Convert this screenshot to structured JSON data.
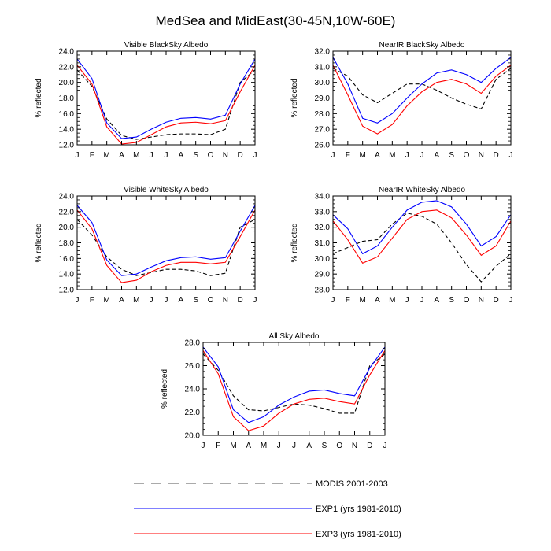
{
  "title": "MedSea and MidEast(30-45N,10W-60E)",
  "colors": {
    "modis": "#000000",
    "exp1": "#0000ff",
    "exp3": "#ff0000"
  },
  "legend": [
    {
      "key": "modis",
      "label": "MODIS 2001-2003",
      "style": "dashed"
    },
    {
      "key": "exp1",
      "label": "EXP1 (yrs 1981-2010)",
      "style": "solid"
    },
    {
      "key": "exp3",
      "label": "EXP3 (yrs 1981-2010)",
      "style": "solid"
    }
  ],
  "chart_data": [
    {
      "type": "line",
      "title": "Visible BlackSky Albedo",
      "ylabel": "% reflected",
      "categories": [
        "J",
        "F",
        "M",
        "A",
        "M",
        "J",
        "J",
        "A",
        "S",
        "O",
        "N",
        "D",
        "J"
      ],
      "ylim": [
        12.0,
        24.0
      ],
      "yticks": [
        "12.0",
        "14.0",
        "16.0",
        "18.0",
        "20.0",
        "22.0",
        "24.0"
      ],
      "series": [
        {
          "key": "modis",
          "name": "MODIS 2001-2003",
          "values": [
            21.6,
            19.5,
            15.3,
            13.2,
            12.7,
            13.0,
            13.3,
            13.4,
            13.4,
            13.3,
            14.0,
            20.0,
            21.6
          ]
        },
        {
          "key": "exp1",
          "name": "EXP1 (yrs 1981-2010)",
          "values": [
            23.0,
            20.5,
            14.8,
            12.8,
            13.0,
            14.0,
            14.9,
            15.4,
            15.5,
            15.3,
            15.8,
            19.8,
            23.0
          ]
        },
        {
          "key": "exp3",
          "name": "EXP3 (yrs 1981-2010)",
          "values": [
            22.2,
            19.8,
            14.3,
            12.1,
            12.3,
            13.3,
            14.3,
            14.8,
            14.9,
            14.7,
            15.1,
            18.8,
            22.2
          ]
        }
      ]
    },
    {
      "type": "line",
      "title": "NearIR BlackSky Albedo",
      "ylabel": "% reflected",
      "categories": [
        "J",
        "F",
        "M",
        "A",
        "M",
        "J",
        "J",
        "A",
        "S",
        "O",
        "N",
        "D",
        "J"
      ],
      "ylim": [
        26.0,
        32.0
      ],
      "yticks": [
        "26.0",
        "27.0",
        "28.0",
        "29.0",
        "30.0",
        "31.0",
        "32.0"
      ],
      "series": [
        {
          "key": "modis",
          "name": "MODIS 2001-2003",
          "values": [
            30.9,
            30.4,
            29.2,
            28.7,
            29.3,
            29.9,
            29.9,
            29.5,
            29.0,
            28.6,
            28.3,
            30.2,
            30.9
          ]
        },
        {
          "key": "exp1",
          "name": "EXP1 (yrs 1981-2010)",
          "values": [
            31.6,
            29.9,
            27.7,
            27.4,
            28.0,
            29.0,
            29.9,
            30.6,
            30.8,
            30.5,
            30.0,
            30.9,
            31.6
          ]
        },
        {
          "key": "exp3",
          "name": "EXP3 (yrs 1981-2010)",
          "values": [
            31.1,
            29.2,
            27.2,
            26.7,
            27.3,
            28.5,
            29.4,
            30.0,
            30.2,
            29.9,
            29.3,
            30.4,
            31.1
          ]
        }
      ]
    },
    {
      "type": "line",
      "title": "Visible WhiteSky Albedo",
      "ylabel": "% reflected",
      "categories": [
        "J",
        "F",
        "M",
        "A",
        "M",
        "J",
        "J",
        "A",
        "S",
        "O",
        "N",
        "D",
        "J"
      ],
      "ylim": [
        12.0,
        24.0
      ],
      "yticks": [
        "12.0",
        "14.0",
        "16.0",
        "18.0",
        "20.0",
        "22.0",
        "24.0"
      ],
      "series": [
        {
          "key": "modis",
          "name": "MODIS 2001-2003",
          "values": [
            21.0,
            19.0,
            16.2,
            14.6,
            13.8,
            14.2,
            14.6,
            14.6,
            14.4,
            13.8,
            14.1,
            20.0,
            21.0
          ]
        },
        {
          "key": "exp1",
          "name": "EXP1 (yrs 1981-2010)",
          "values": [
            22.8,
            20.6,
            15.8,
            13.8,
            14.0,
            14.9,
            15.7,
            16.1,
            16.2,
            15.9,
            16.1,
            19.5,
            22.8
          ]
        },
        {
          "key": "exp3",
          "name": "EXP3 (yrs 1981-2010)",
          "values": [
            22.2,
            19.8,
            15.1,
            12.9,
            13.2,
            14.3,
            15.1,
            15.5,
            15.5,
            15.3,
            15.5,
            18.8,
            22.2
          ]
        }
      ]
    },
    {
      "type": "line",
      "title": "NearIR WhiteSky Albedo",
      "ylabel": "% reflected",
      "categories": [
        "J",
        "F",
        "M",
        "A",
        "M",
        "J",
        "J",
        "A",
        "S",
        "O",
        "N",
        "D",
        "J"
      ],
      "ylim": [
        28.0,
        34.0
      ],
      "yticks": [
        "28.0",
        "29.0",
        "30.0",
        "31.0",
        "32.0",
        "33.0",
        "34.0"
      ],
      "series": [
        {
          "key": "modis",
          "name": "MODIS 2001-2003",
          "values": [
            30.3,
            30.7,
            31.1,
            31.2,
            32.2,
            32.9,
            32.7,
            32.2,
            31.0,
            29.6,
            28.5,
            29.5,
            30.3
          ]
        },
        {
          "key": "exp1",
          "name": "EXP1 (yrs 1981-2010)",
          "values": [
            32.8,
            31.9,
            30.3,
            30.8,
            32.0,
            33.1,
            33.6,
            33.7,
            33.3,
            32.2,
            30.8,
            31.4,
            32.8
          ]
        },
        {
          "key": "exp3",
          "name": "EXP3 (yrs 1981-2010)",
          "values": [
            32.4,
            31.2,
            29.7,
            30.1,
            31.3,
            32.5,
            33.0,
            33.1,
            32.6,
            31.5,
            30.2,
            30.8,
            32.4
          ]
        }
      ]
    },
    {
      "type": "line",
      "title": "All Sky Albedo",
      "ylabel": "% reflected",
      "categories": [
        "J",
        "F",
        "M",
        "A",
        "M",
        "J",
        "J",
        "A",
        "S",
        "O",
        "N",
        "D",
        "J"
      ],
      "ylim": [
        20.0,
        28.0
      ],
      "yticks": [
        "20.0",
        "22.0",
        "24.0",
        "26.0",
        "28.0"
      ],
      "series": [
        {
          "key": "modis",
          "name": "MODIS 2001-2003",
          "values": [
            27.0,
            25.6,
            23.4,
            22.2,
            22.1,
            22.4,
            22.7,
            22.6,
            22.3,
            21.9,
            21.9,
            26.0,
            27.0
          ]
        },
        {
          "key": "exp1",
          "name": "EXP1 (yrs 1981-2010)",
          "values": [
            27.6,
            25.9,
            22.2,
            21.1,
            21.6,
            22.6,
            23.3,
            23.8,
            23.9,
            23.6,
            23.4,
            25.8,
            27.6
          ]
        },
        {
          "key": "exp3",
          "name": "EXP3 (yrs 1981-2010)",
          "values": [
            27.3,
            25.3,
            21.6,
            20.4,
            20.8,
            21.9,
            22.7,
            23.1,
            23.2,
            22.9,
            22.7,
            25.2,
            27.3
          ]
        }
      ]
    }
  ]
}
